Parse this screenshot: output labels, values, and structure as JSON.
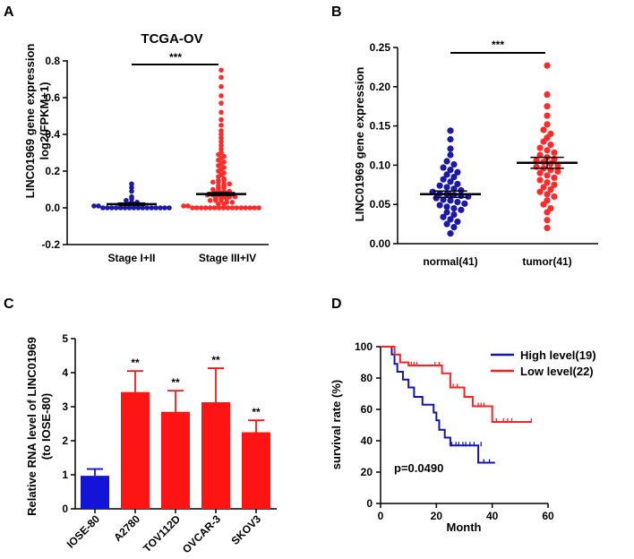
{
  "chart_data": [
    {
      "panel": "A",
      "type": "scatter",
      "title": "TCGA-OV",
      "ylabel_line1": "LINC01969 gene expression",
      "ylabel_line2": "log2(FPKM+1)",
      "categories": [
        "Stage I+II",
        "Stage III+IV"
      ],
      "ylim": [
        -0.2,
        0.8
      ],
      "yticks": [
        -0.2,
        0.0,
        0.2,
        0.4,
        0.6,
        0.8
      ],
      "ytick_labels": [
        "-0.2",
        "0.0",
        "0.2",
        "0.4",
        "0.6",
        "0.8"
      ],
      "series": [
        {
          "name": "Stage I+II",
          "color": "#1a1aa6",
          "mean": 0.02,
          "sem": 0.006,
          "values": [
            0.13,
            0.11,
            0.09,
            0.06,
            0.05,
            0.04,
            0.03,
            0.03,
            0.02,
            0.02,
            0.01,
            0.01,
            0.0,
            0.0,
            0.0,
            0.0,
            0.0,
            0.0,
            0.0,
            0.0,
            0.0,
            0.0,
            0.0,
            0.0,
            0.0,
            0.0,
            0.0,
            0.0
          ]
        },
        {
          "name": "Stage III+IV",
          "color": "#ff2a2a",
          "mean": 0.075,
          "sem": 0.008,
          "values": [
            0.75,
            0.71,
            0.66,
            0.61,
            0.57,
            0.52,
            0.48,
            0.45,
            0.42,
            0.4,
            0.38,
            0.36,
            0.34,
            0.32,
            0.3,
            0.29,
            0.28,
            0.27,
            0.26,
            0.25,
            0.24,
            0.23,
            0.22,
            0.21,
            0.2,
            0.19,
            0.18,
            0.17,
            0.16,
            0.15,
            0.15,
            0.14,
            0.14,
            0.13,
            0.13,
            0.12,
            0.12,
            0.11,
            0.11,
            0.1,
            0.1,
            0.09,
            0.09,
            0.08,
            0.08,
            0.08,
            0.07,
            0.07,
            0.07,
            0.06,
            0.06,
            0.06,
            0.05,
            0.05,
            0.05,
            0.04,
            0.04,
            0.04,
            0.03,
            0.03,
            0.02,
            0.02,
            0.01,
            0.01,
            0.0,
            0.0,
            0.0,
            0.0,
            0.0,
            0.0,
            0.0,
            0.0,
            0.0,
            0.0,
            0.0,
            0.0,
            0.0,
            0.0,
            0.0,
            0.0
          ]
        }
      ],
      "significance": "***"
    },
    {
      "panel": "B",
      "type": "scatter",
      "title": "",
      "ylabel": "LINC01969 gene expression",
      "categories": [
        "normal(41)",
        "tumor(41)"
      ],
      "ylim": [
        0.0,
        0.25
      ],
      "yticks": [
        0.0,
        0.05,
        0.1,
        0.15,
        0.2,
        0.25
      ],
      "ytick_labels": [
        "0.00",
        "0.05",
        "0.10",
        "0.15",
        "0.20",
        "0.25"
      ],
      "series": [
        {
          "name": "normal(41)",
          "color": "#1a1aa6",
          "mean": 0.063,
          "sem": 0.004,
          "values": [
            0.144,
            0.133,
            0.121,
            0.113,
            0.105,
            0.101,
            0.097,
            0.094,
            0.091,
            0.088,
            0.085,
            0.082,
            0.079,
            0.076,
            0.074,
            0.072,
            0.07,
            0.068,
            0.066,
            0.064,
            0.063,
            0.062,
            0.061,
            0.06,
            0.058,
            0.056,
            0.055,
            0.053,
            0.051,
            0.049,
            0.047,
            0.045,
            0.043,
            0.04,
            0.037,
            0.034,
            0.031,
            0.028,
            0.025,
            0.021,
            0.013
          ]
        },
        {
          "name": "tumor(41)",
          "color": "#ff2a2a",
          "mean": 0.103,
          "sem": 0.007,
          "values": [
            0.227,
            0.19,
            0.175,
            0.163,
            0.152,
            0.145,
            0.14,
            0.135,
            0.13,
            0.126,
            0.122,
            0.119,
            0.116,
            0.113,
            0.11,
            0.108,
            0.106,
            0.104,
            0.102,
            0.1,
            0.098,
            0.096,
            0.094,
            0.092,
            0.09,
            0.087,
            0.084,
            0.081,
            0.078,
            0.075,
            0.072,
            0.069,
            0.066,
            0.063,
            0.06,
            0.055,
            0.05,
            0.045,
            0.04,
            0.03,
            0.02
          ]
        }
      ],
      "significance": "***"
    },
    {
      "panel": "C",
      "type": "bar",
      "ylabel_line1": "Relative RNA level of LINC01969",
      "ylabel_line2": "(to IOSE-80)",
      "categories": [
        "IOSE-80",
        "A2780",
        "TOV112D",
        "OVCAR-3",
        "SKOV3"
      ],
      "values": [
        0.97,
        3.43,
        2.85,
        3.13,
        2.25
      ],
      "errors": [
        0.2,
        0.62,
        0.62,
        1.0,
        0.35
      ],
      "colors": [
        "#1414d8",
        "#ff1414",
        "#ff1414",
        "#ff1414",
        "#ff1414"
      ],
      "annotations": [
        "",
        "**",
        "**",
        "**",
        "**"
      ],
      "ylim": [
        0,
        5
      ],
      "yticks": [
        0,
        1,
        2,
        3,
        4,
        5
      ],
      "ytick_labels": [
        "0",
        "1",
        "2",
        "3",
        "4",
        "5"
      ]
    },
    {
      "panel": "D",
      "type": "line",
      "xlabel": "Month",
      "ylabel": "survival rate (%)",
      "xlim": [
        0,
        60
      ],
      "ylim": [
        0,
        100
      ],
      "xticks": [
        0,
        20,
        40,
        60
      ],
      "xtick_labels": [
        "0",
        "20",
        "40",
        "60"
      ],
      "yticks": [
        0,
        20,
        40,
        60,
        80,
        100
      ],
      "ytick_labels": [
        "0",
        "20",
        "40",
        "60",
        "80",
        "100"
      ],
      "series": [
        {
          "name": "High level(19)",
          "color": "#1414b4",
          "x": [
            0,
            3,
            4,
            5,
            6,
            8,
            10,
            12,
            15,
            19,
            20,
            21,
            23,
            25,
            35,
            41
          ],
          "y": [
            100,
            100,
            95,
            89,
            84,
            79,
            74,
            68,
            63,
            58,
            53,
            47,
            42,
            37,
            26,
            26
          ],
          "censor_x": [
            25.5,
            27,
            28,
            29.5,
            30.5,
            32,
            33.5,
            36,
            37,
            39
          ],
          "censor_y": [
            37,
            37,
            37,
            37,
            37,
            37,
            37,
            37,
            26,
            26
          ]
        },
        {
          "name": "Low level(22)",
          "color": "#ff2020",
          "x": [
            0,
            3,
            5,
            7,
            10,
            22,
            25,
            30,
            33,
            40,
            54
          ],
          "y": [
            100,
            100,
            95,
            90,
            88,
            83,
            74,
            68,
            62,
            52,
            52
          ],
          "censor_x": [
            11,
            12,
            13,
            19.5,
            21,
            26,
            27.5,
            35,
            36,
            37,
            41.5,
            44,
            45.5,
            47,
            54
          ],
          "censor_y": [
            88,
            88,
            88,
            88,
            88,
            74,
            74,
            62,
            62,
            62,
            52,
            52,
            52,
            52,
            52
          ]
        }
      ],
      "annotation": "p=0.0490"
    }
  ]
}
